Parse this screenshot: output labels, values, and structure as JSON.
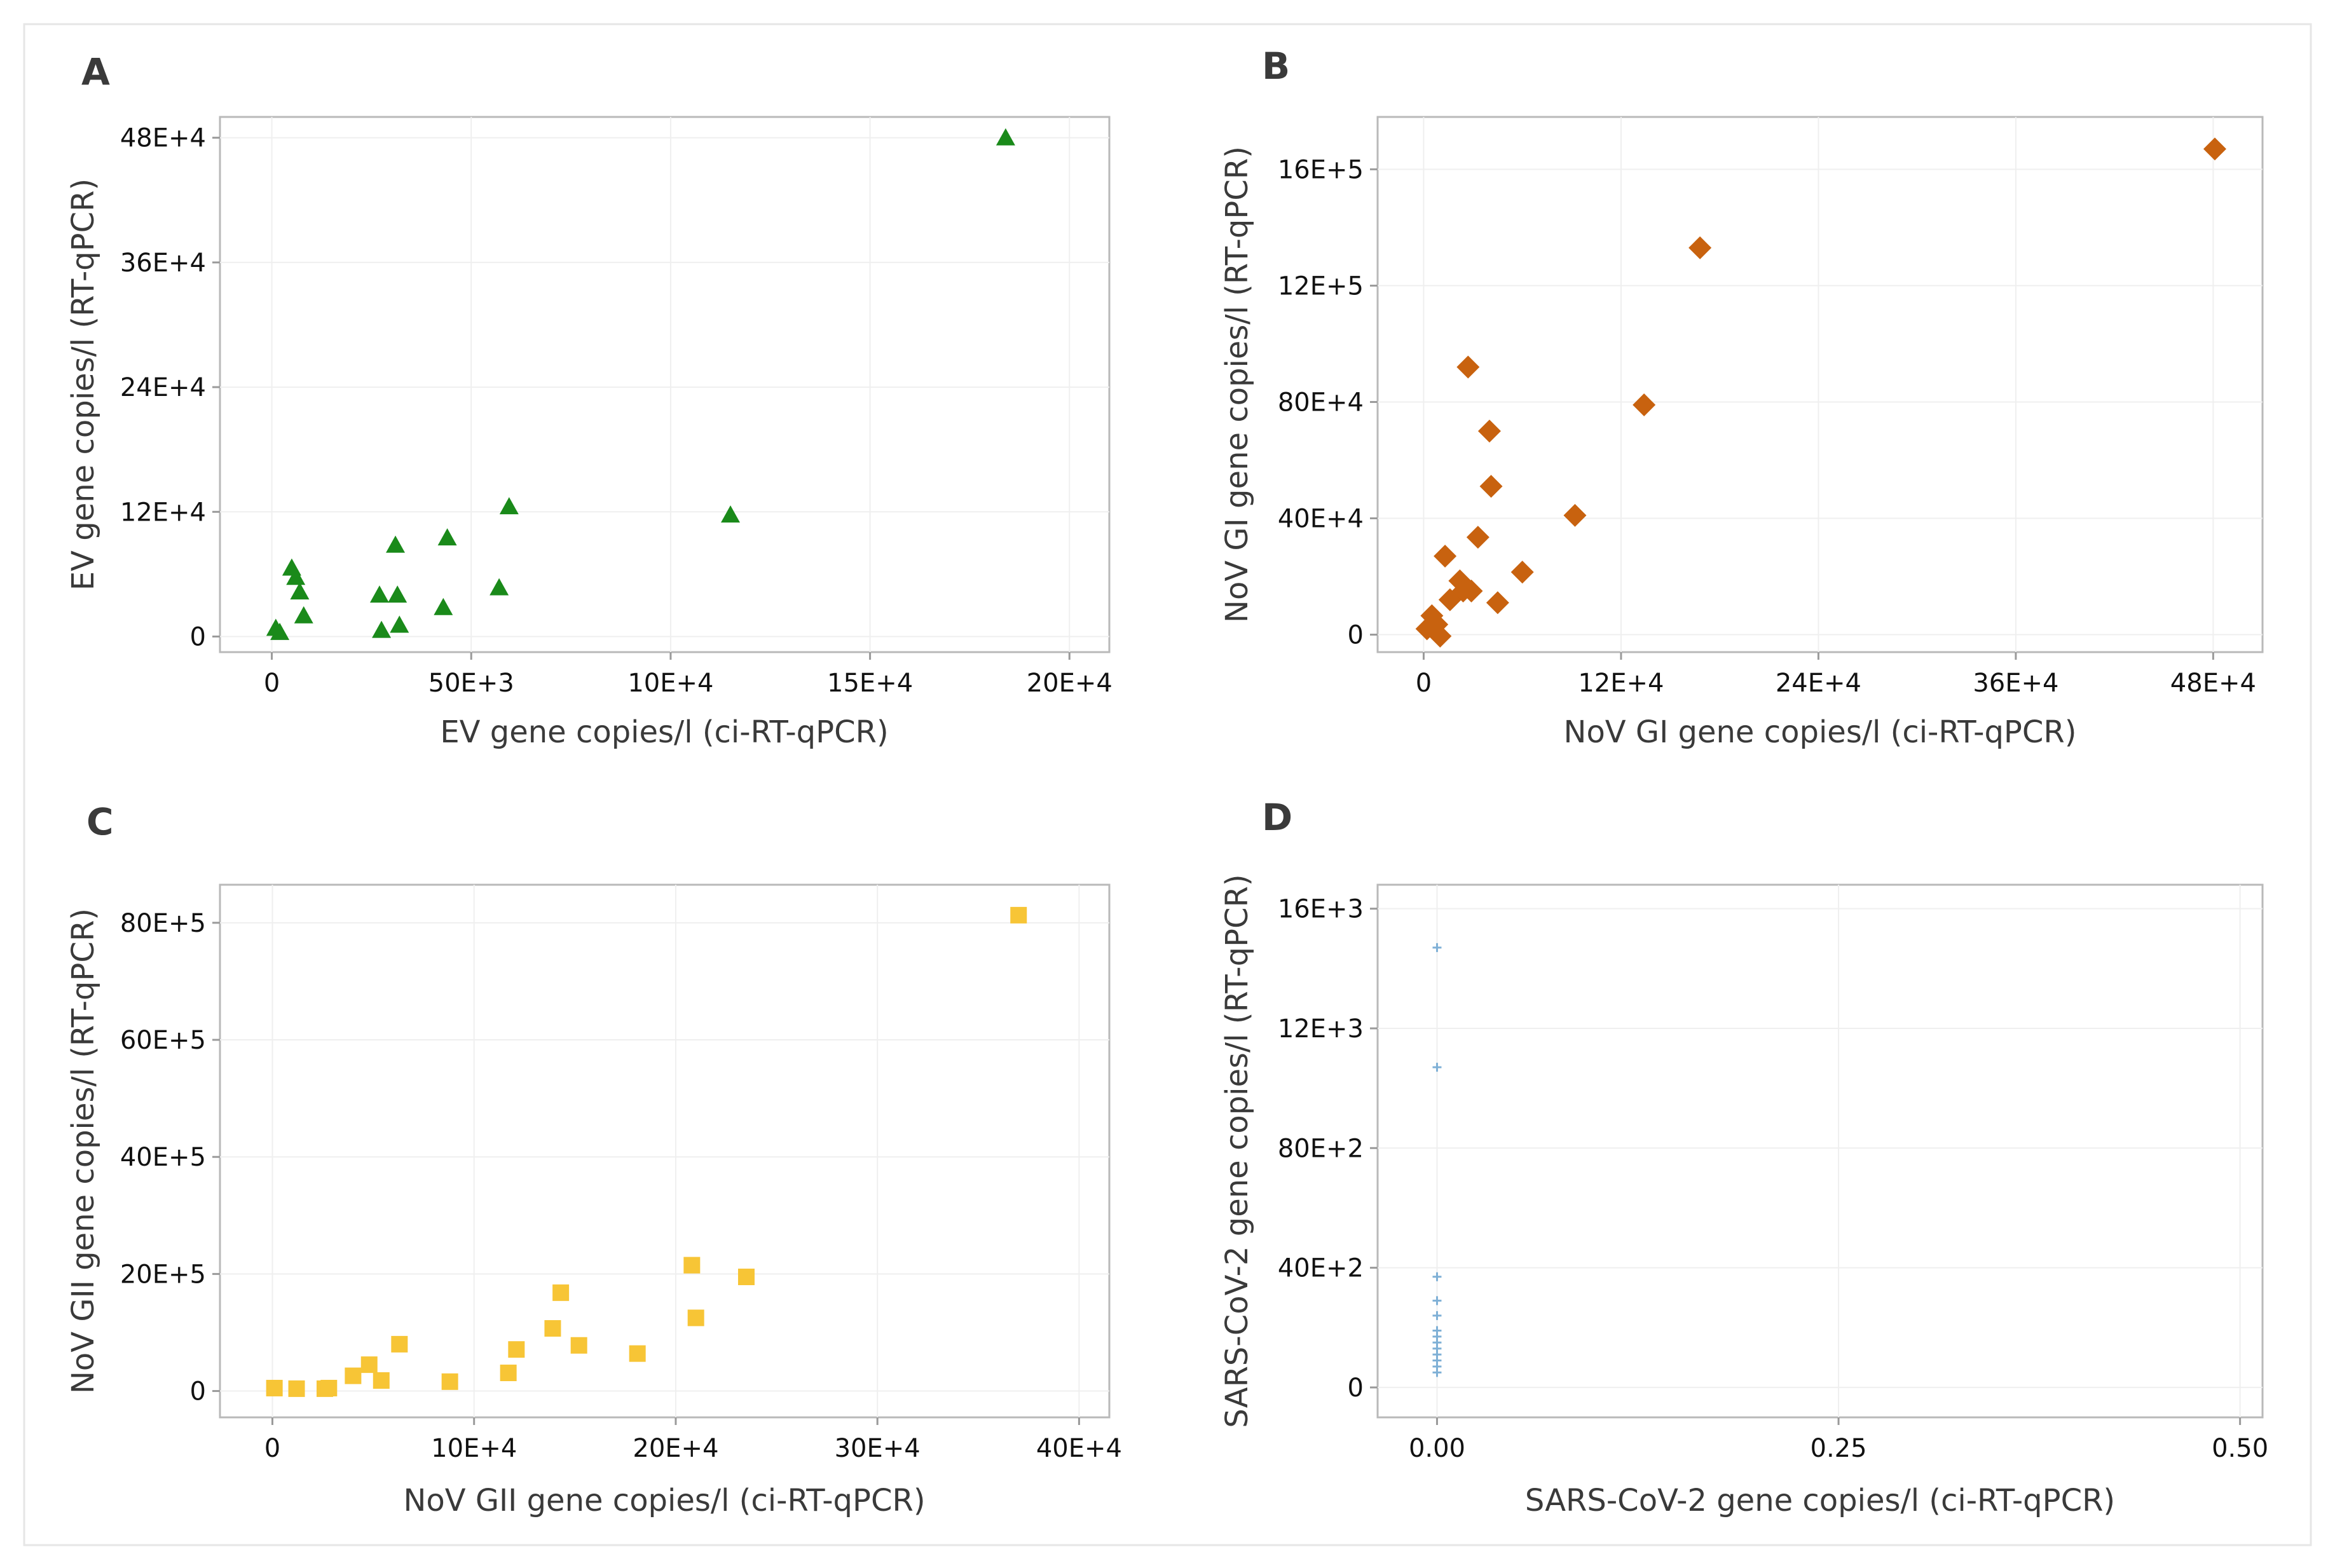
{
  "chart_data": [
    {
      "type": "scatter",
      "panel": "A",
      "color": "#1a8a1a",
      "marker": "triangle",
      "xlabel": "EV gene copies/l (ci-RT-qPCR)",
      "ylabel": "EV gene copies/l (RT-qPCR)",
      "xlim": [
        -13000,
        210000
      ],
      "ylim": [
        -15000,
        500000
      ],
      "x_ticks": [
        0,
        50000,
        100000,
        150000,
        200000
      ],
      "x_tick_labels": [
        "0",
        "50E+3",
        "10E+4",
        "15E+4",
        "20E+4"
      ],
      "y_ticks": [
        0,
        120000,
        240000,
        360000,
        480000
      ],
      "y_tick_labels": [
        "0",
        "12E+4",
        "24E+4",
        "36E+4",
        "48E+4"
      ],
      "x": [
        1000,
        2000,
        5000,
        6000,
        7000,
        8000,
        27000,
        27500,
        31000,
        31500,
        32000,
        43000,
        44000,
        57000,
        59500,
        115000,
        184000
      ],
      "y": [
        8000,
        4000,
        66000,
        57000,
        43000,
        20000,
        40000,
        6000,
        88000,
        40000,
        11000,
        28000,
        95000,
        47000,
        125000,
        117000,
        480000
      ]
    },
    {
      "type": "scatter",
      "panel": "B",
      "color": "#c8620f",
      "marker": "diamond",
      "xlabel": "NoV GI gene copies/l (ci-RT-qPCR)",
      "ylabel": "NoV GI gene copies/l (RT-qPCR)",
      "xlim": [
        -28000,
        510000
      ],
      "ylim": [
        -60000,
        1780000
      ],
      "x_ticks": [
        0,
        120000,
        240000,
        360000,
        480000
      ],
      "x_tick_labels": [
        "0",
        "12E+4",
        "24E+4",
        "36E+4",
        "48E+4"
      ],
      "y_ticks": [
        0,
        400000,
        800000,
        1200000,
        1600000
      ],
      "y_tick_labels": [
        "0",
        "40E+4",
        "80E+4",
        "12E+5",
        "16E+5"
      ],
      "x": [
        2000,
        5000,
        8000,
        10000,
        13000,
        16000,
        22000,
        24000,
        27000,
        29000,
        33000,
        40000,
        41000,
        45000,
        60000,
        92000,
        134000,
        168000,
        481000
      ],
      "y": [
        20000,
        65000,
        35000,
        -5000,
        270000,
        120000,
        185000,
        150000,
        920000,
        150000,
        335000,
        700000,
        510000,
        110000,
        215000,
        410000,
        790000,
        1330000,
        1670000
      ]
    },
    {
      "type": "scatter",
      "panel": "C",
      "color": "#f7c536",
      "marker": "square",
      "xlabel": "NoV GII gene copies/l (ci-RT-qPCR)",
      "ylabel": "NoV GII gene copies/l (RT-qPCR)",
      "xlim": [
        -26000,
        415000
      ],
      "ylim": [
        -450000,
        8650000
      ],
      "x_ticks": [
        0,
        100000,
        200000,
        300000,
        400000
      ],
      "x_tick_labels": [
        "0",
        "10E+4",
        "20E+4",
        "30E+4",
        "40E+4"
      ],
      "y_ticks": [
        0,
        2000000,
        4000000,
        6000000,
        8000000
      ],
      "y_tick_labels": [
        "0",
        "20E+5",
        "40E+5",
        "60E+5",
        "80E+5"
      ],
      "x": [
        1000,
        12000,
        26000,
        28000,
        40000,
        48000,
        54000,
        63000,
        88000,
        117000,
        121000,
        139000,
        143000,
        152000,
        181000,
        208000,
        210000,
        235000,
        370000
      ],
      "y": [
        50000,
        40000,
        40000,
        50000,
        260000,
        450000,
        180000,
        800000,
        160000,
        310000,
        710000,
        1070000,
        1680000,
        780000,
        640000,
        2150000,
        1250000,
        1950000,
        8130000
      ]
    },
    {
      "type": "scatter",
      "panel": "D",
      "color": "#7fb0d6",
      "marker": "plus",
      "xlabel": "SARS-CoV-2 gene copies/l (ci-RT-qPCR)",
      "ylabel": "SARS-CoV-2 gene copies/l (RT-qPCR)",
      "xlim": [
        -0.037,
        0.514
      ],
      "ylim": [
        -1000,
        16800
      ],
      "x_ticks": [
        0,
        0.25,
        0.5
      ],
      "x_tick_labels": [
        "0.00",
        "0.25",
        "0.50"
      ],
      "y_ticks": [
        0,
        4000,
        8000,
        12000,
        16000
      ],
      "y_tick_labels": [
        "0",
        "40E+2",
        "80E+2",
        "12E+3",
        "16E+3"
      ],
      "x": [
        0,
        0,
        0,
        0,
        0,
        0,
        0,
        0,
        0,
        0,
        0,
        0,
        0
      ],
      "y": [
        14700,
        10700,
        3700,
        2900,
        2400,
        1900,
        1700,
        1500,
        1300,
        1100,
        900,
        700,
        500
      ]
    }
  ]
}
